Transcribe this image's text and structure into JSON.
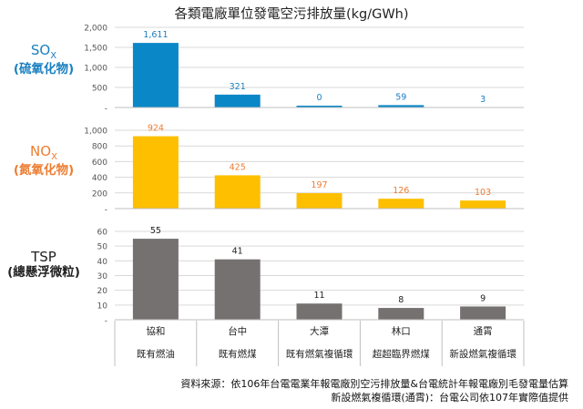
{
  "chart_data": {
    "type": "bar",
    "title": "各類電廠單位發電空污排放量(kg/GWh)",
    "categories": [
      "協和",
      "台中",
      "大潭",
      "林口",
      "通霄"
    ],
    "category_types": [
      "既有燃油",
      "既有燃煤",
      "既有燃氣複循環",
      "超超臨界燃煤",
      "新設燃氣複循環"
    ],
    "panels": [
      {
        "name": "SOx",
        "label_main": "SO",
        "label_sub_x": "X",
        "label_cn": "(硫氧化物)",
        "color": "#0a87c7",
        "label_color": "#1a7fc0",
        "values": [
          1611,
          321,
          0,
          59,
          3
        ],
        "value_labels": [
          "1,611",
          "321",
          "0",
          "59",
          "3"
        ],
        "ylim": [
          0,
          2000
        ],
        "ticks": [
          "-",
          "500",
          "1,000",
          "1,500",
          "2,000"
        ]
      },
      {
        "name": "NOx",
        "label_main": "NO",
        "label_sub_x": "X",
        "label_cn": "(氮氧化物)",
        "color": "#fdbf00",
        "label_color": "#ed7d31",
        "values": [
          924,
          425,
          197,
          126,
          103
        ],
        "value_labels": [
          "924",
          "425",
          "197",
          "126",
          "103"
        ],
        "ylim": [
          0,
          1000
        ],
        "ticks": [
          "-",
          "200",
          "400",
          "600",
          "800",
          "1,000"
        ]
      },
      {
        "name": "TSP",
        "label_main": "TSP",
        "label_sub_x": "",
        "label_cn": "(總懸浮微粒)",
        "color": "#767171",
        "label_color": "#222222",
        "values": [
          55,
          41,
          11,
          8,
          9
        ],
        "value_labels": [
          "55",
          "41",
          "11",
          "8",
          "9"
        ],
        "ylim": [
          0,
          60
        ],
        "ticks": [
          "-",
          "10",
          "20",
          "30",
          "40",
          "50",
          "60"
        ]
      }
    ]
  },
  "source": {
    "line1": "資料來源：依106年台電電業年報電廠別空污排放量&台電統計年報電廠別毛發電量估算",
    "line2": "新設燃氣複循環(通霄)：台電公司依107年實際值提供"
  }
}
